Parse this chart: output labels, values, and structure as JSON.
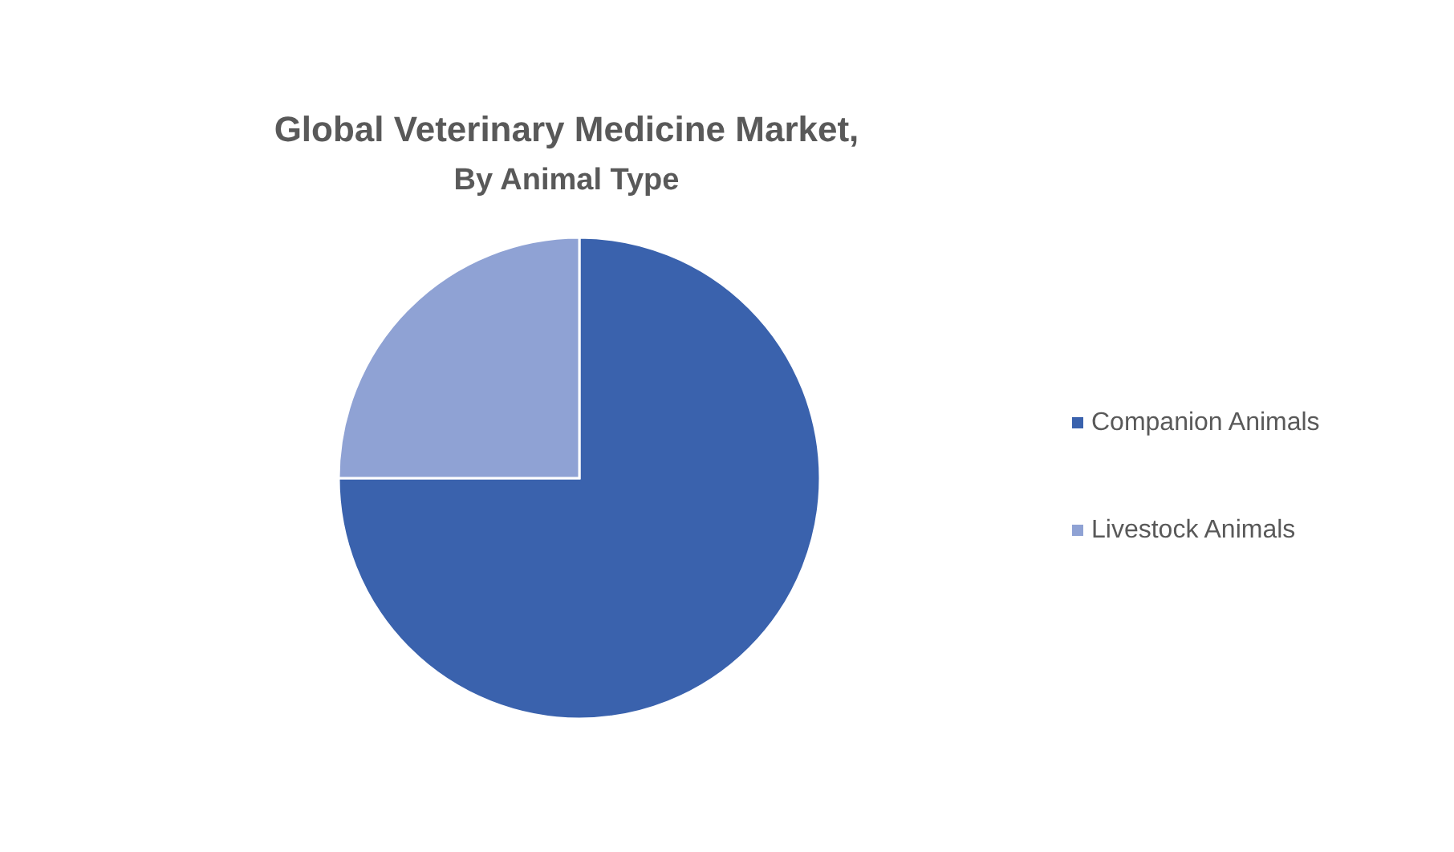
{
  "chart_data": {
    "type": "pie",
    "title": "Global Veterinary Medicine Market,",
    "subtitle": "By Animal Type",
    "categories": [
      "Companion Animals",
      "Livestock Animals"
    ],
    "values": [
      75,
      25
    ],
    "colors": [
      "#3a62ad",
      "#8fa2d4"
    ],
    "legend": "right"
  }
}
